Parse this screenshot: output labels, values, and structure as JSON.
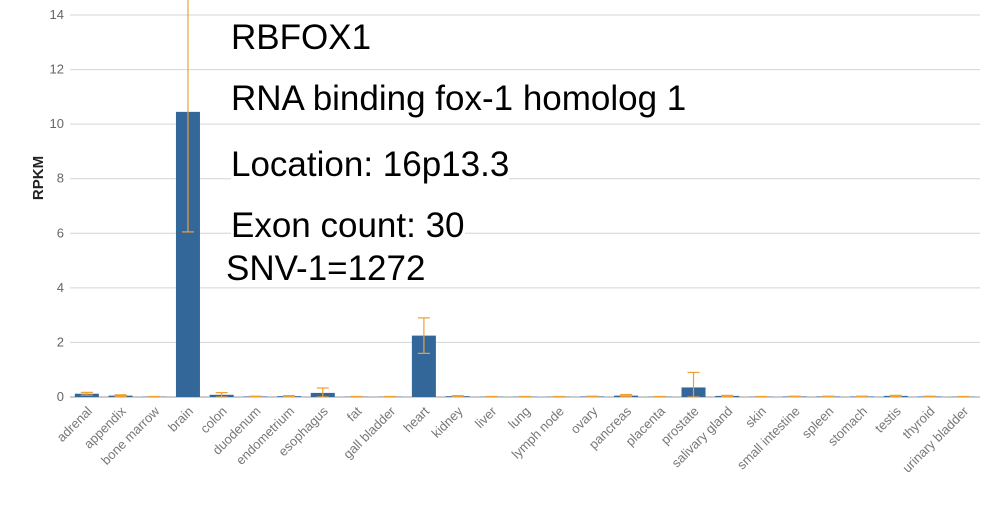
{
  "chart_data": {
    "type": "bar",
    "ylabel": "RPKM",
    "ylim": [
      0,
      14
    ],
    "yticks": [
      0,
      2,
      4,
      6,
      8,
      10,
      12,
      14
    ],
    "grid": true,
    "bar_color": "#336699",
    "error_color": "#f0a030",
    "categories": [
      "adrenal",
      "appendix",
      "bone marrow",
      "brain",
      "colon",
      "duodenum",
      "endometrium",
      "esophagus",
      "fat",
      "gall bladder",
      "heart",
      "kidney",
      "liver",
      "lung",
      "lymph node",
      "ovary",
      "pancreas",
      "placenta",
      "prostate",
      "salivary gland",
      "skin",
      "small intestine",
      "spleen",
      "stomach",
      "testis",
      "thyroid",
      "urinary bladder"
    ],
    "values": [
      0.12,
      0.05,
      0.01,
      10.45,
      0.08,
      0.02,
      0.03,
      0.15,
      0.01,
      0.01,
      2.25,
      0.03,
      0.01,
      0.01,
      0.01,
      0.02,
      0.05,
      0.01,
      0.35,
      0.04,
      0.01,
      0.02,
      0.02,
      0.02,
      0.04,
      0.02,
      0.01
    ],
    "errors": [
      0.05,
      0.03,
      0.01,
      4.4,
      0.08,
      0.01,
      0.02,
      0.18,
      0.01,
      0.01,
      0.65,
      0.02,
      0.01,
      0.01,
      0.01,
      0.01,
      0.04,
      0.01,
      0.55,
      0.02,
      0.01,
      0.01,
      0.01,
      0.01,
      0.02,
      0.01,
      0.01
    ]
  },
  "info": {
    "gene_symbol": "RBFOX1",
    "gene_name": "RNA binding fox-1 homolog 1",
    "location": "Location: 16p13.3",
    "exon_count": "Exon count: 30",
    "snv": "SNV-1=1272"
  }
}
